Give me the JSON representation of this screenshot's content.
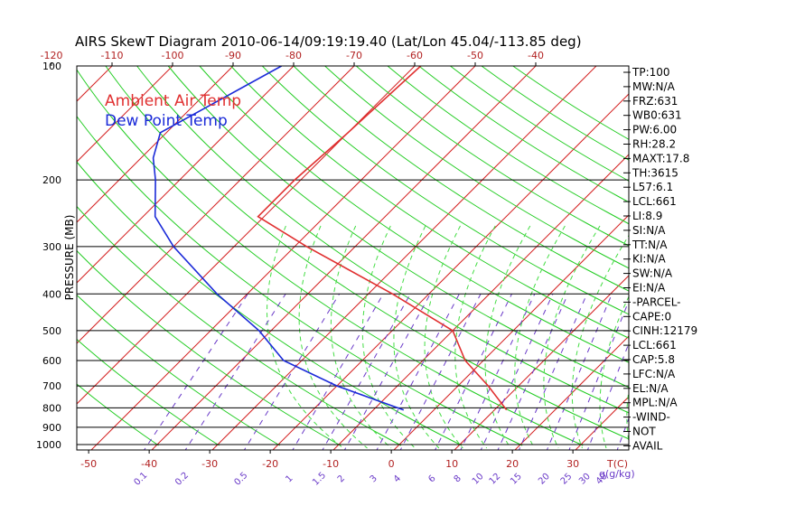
{
  "chart_data": {
    "type": "line",
    "chart_kind": "skew-T log-P sounding",
    "title": "AIRS SkewT Diagram 2010-06-14/09:19:19.40 (Lat/Lon 45.04/-113.85 deg)",
    "ylabel": "PRESSURE (MB)",
    "pressure_ticks": [
      100,
      200,
      300,
      400,
      500,
      600,
      700,
      800,
      900,
      1000
    ],
    "pressure_range_mb": [
      100,
      1050
    ],
    "top_temp_ticks": [
      -120,
      -110,
      -100,
      -90,
      -80,
      -70,
      -60,
      -50,
      -40
    ],
    "bottom_temp_ticks": [
      -50,
      -40,
      -30,
      -20,
      -10,
      0,
      10,
      20,
      30
    ],
    "bottom_temp_unit": "T(C)",
    "mixing_ratio_ticks": [
      "0.1",
      "0.2",
      "0.5",
      "1",
      "1.5",
      "2",
      "3",
      "4",
      "6",
      "8",
      "10",
      "12",
      "15",
      "20",
      "25",
      "30",
      "40"
    ],
    "mixing_ratio_unit": "g(g/kg)",
    "legend": [
      {
        "label": "Ambient Air Temp",
        "color": "#e03030"
      },
      {
        "label": "Dew Point Temp",
        "color": "#1a2ad8"
      }
    ],
    "series": [
      {
        "name": "Ambient Air Temp",
        "color": "#e03030",
        "points": [
          {
            "p": 100,
            "t": -59
          },
          {
            "p": 150,
            "t": -60
          },
          {
            "p": 200,
            "t": -61
          },
          {
            "p": 250,
            "t": -61
          },
          {
            "p": 300,
            "t": -48
          },
          {
            "p": 400,
            "t": -26
          },
          {
            "p": 500,
            "t": -10
          },
          {
            "p": 600,
            "t": -3
          },
          {
            "p": 700,
            "t": 5
          },
          {
            "p": 810,
            "t": 12
          }
        ]
      },
      {
        "name": "Dew Point Temp",
        "color": "#1a2ad8",
        "points": [
          {
            "p": 100,
            "t": -82
          },
          {
            "p": 150,
            "t": -91
          },
          {
            "p": 175,
            "t": -88
          },
          {
            "p": 200,
            "t": -84
          },
          {
            "p": 250,
            "t": -78
          },
          {
            "p": 300,
            "t": -70
          },
          {
            "p": 400,
            "t": -55
          },
          {
            "p": 500,
            "t": -42
          },
          {
            "p": 600,
            "t": -33
          },
          {
            "p": 700,
            "t": -20
          },
          {
            "p": 810,
            "t": -5
          }
        ]
      }
    ],
    "stats": [
      "TP:100",
      "MW:N/A",
      "FRZ:631",
      "WB0:631",
      "PW:6.00",
      "RH:28.2",
      "MAXT:17.8",
      "TH:3615",
      "L57:6.1",
      "LCL:661",
      "LI:8.9",
      "SI:N/A",
      "TT:N/A",
      "KI:N/A",
      "SW:N/A",
      "EI:N/A",
      "-PARCEL-",
      "CAPE:0",
      "CINH:12179",
      "LCL:661",
      "CAP:5.8",
      "LFC:N/A",
      "EL:N/A",
      "MPL:N/A",
      "-WIND-",
      "NOT",
      "AVAIL"
    ],
    "colors": {
      "isotherm": "#d42020",
      "adiabat": "#22cc22",
      "moist_adiabat": "#44dd44",
      "mixing_ratio": "#6a3ac8",
      "axis_label": "#b22222",
      "text": "#000000"
    }
  }
}
